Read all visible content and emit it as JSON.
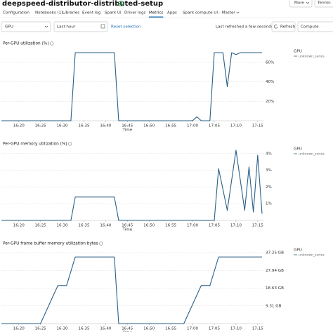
{
  "header": {
    "title": "deepspeed-distributor-distributed-setup",
    "buttons": [
      "More",
      "Termin"
    ]
  },
  "tabs": {
    "items": [
      "Configuration",
      "Notebooks (1)",
      "Libraries",
      "Event log",
      "Spark UI",
      "Driver logs",
      "Metrics",
      "Apps",
      "Spark compute UI - Master"
    ],
    "active": "Metrics"
  },
  "toolbar": {
    "metric": "GPU",
    "range": "Last hour",
    "reset": "Reset selection",
    "status": "Last refreshed a few seconds ago",
    "refresh": "Refresh",
    "scope": "Compute"
  },
  "charts": [
    {
      "type": "line",
      "title": "Per-GPU utilization (%)",
      "x_label": "Time",
      "legend_title": "GPU",
      "xlim": [
        "16:16",
        "17:16"
      ],
      "xticks": [
        "16:20",
        "16:25",
        "16:30",
        "16:35",
        "16:40",
        "16:45",
        "16:50",
        "16:55",
        "17:00",
        "17:05",
        "17:10",
        "17:15"
      ],
      "ylim": [
        0,
        70
      ],
      "yticks": [
        {
          "value": 20,
          "label": "20%"
        },
        {
          "value": 40,
          "label": "40%"
        },
        {
          "value": 60,
          "label": "60%"
        }
      ],
      "grid": true,
      "series": [
        {
          "name": "unknown_series",
          "color": "#2a5f86",
          "x": [
            "16:16",
            "16:32",
            "16:33",
            "16:42",
            "16:43",
            "17:00",
            "17:01",
            "17:02",
            "17:04",
            "17:05",
            "17:07",
            "17:08",
            "17:09",
            "17:10",
            "17:11",
            "17:16"
          ],
          "values": [
            0,
            0,
            70,
            70,
            0,
            0,
            4,
            0,
            0,
            70,
            70,
            35,
            70,
            68,
            70,
            70
          ]
        }
      ]
    },
    {
      "type": "line",
      "title": "Per-GPU memory utilization (%)",
      "x_label": "Time",
      "legend_title": "GPU",
      "xlim": [
        "16:16",
        "17:16"
      ],
      "xticks": [
        "16:20",
        "16:25",
        "16:30",
        "16:35",
        "16:40",
        "16:45",
        "16:50",
        "16:55",
        "17:00",
        "17:05",
        "17:10",
        "17:15"
      ],
      "ylim": [
        0,
        4.2
      ],
      "yticks": [
        {
          "value": 1,
          "label": "1%"
        },
        {
          "value": 2,
          "label": "2%"
        },
        {
          "value": 3,
          "label": "3%"
        },
        {
          "value": 4,
          "label": "4%"
        }
      ],
      "grid": true,
      "series": [
        {
          "name": "unknown_series",
          "color": "#2a5f86",
          "x": [
            "16:16",
            "16:32",
            "16:33",
            "16:42",
            "16:43",
            "17:05",
            "17:06",
            "17:08",
            "17:10",
            "17:12",
            "17:13",
            "17:14",
            "17:15",
            "17:16"
          ],
          "values": [
            0,
            0,
            1.4,
            1.4,
            0,
            0,
            3.1,
            0.6,
            4.2,
            0.6,
            3.2,
            0.5,
            3.9,
            0.4
          ]
        }
      ]
    },
    {
      "type": "line",
      "title": "Per-GPU frame buffer memory utilization bytes",
      "x_label": "Time",
      "legend_title": "GPU",
      "xlim": [
        "16:16",
        "17:16"
      ],
      "xticks": [
        "16:20",
        "16:25",
        "16:30",
        "16:35",
        "16:40",
        "16:45",
        "16:50",
        "16:55",
        "17:00",
        "17:05",
        "17:10",
        "17:15"
      ],
      "ylim": [
        0,
        38
      ],
      "yticks": [
        {
          "value": 9.31,
          "label": "9.31 GB"
        },
        {
          "value": 18.63,
          "label": "18.63 GB"
        },
        {
          "value": 27.94,
          "label": "27.94 GB"
        },
        {
          "value": 37.25,
          "label": "37.25 GB"
        }
      ],
      "grid": true,
      "series": [
        {
          "name": "unknown_series",
          "color": "#2a5f86",
          "x": [
            "16:16",
            "16:25",
            "16:29",
            "16:31",
            "16:33",
            "16:42",
            "16:43",
            "16:58",
            "17:02",
            "17:04",
            "17:06",
            "17:16"
          ],
          "values": [
            0,
            0,
            20,
            20,
            35,
            35,
            0,
            0,
            20,
            20,
            35,
            35
          ]
        }
      ]
    }
  ]
}
